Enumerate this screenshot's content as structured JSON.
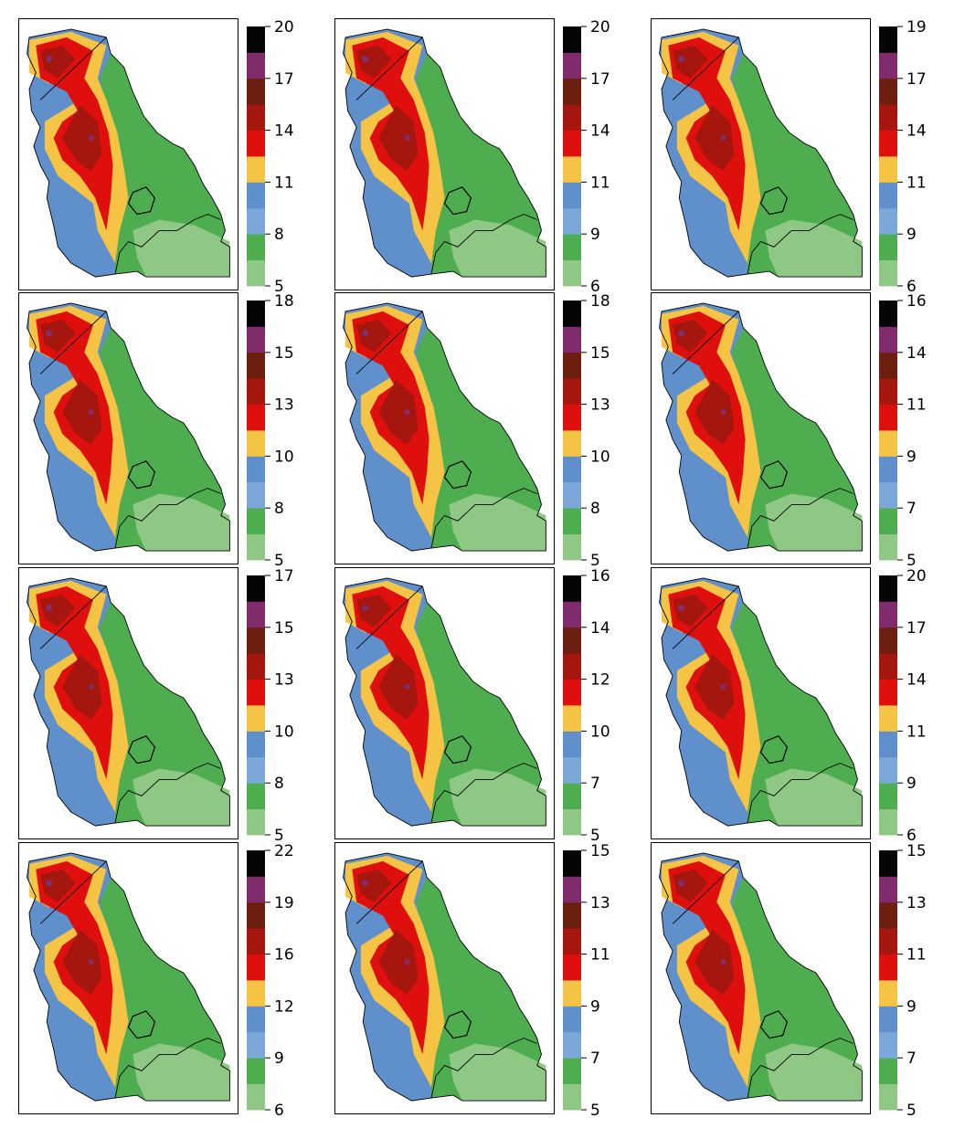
{
  "chart_data": {
    "type": "heatmap",
    "layout": {
      "rows": 4,
      "cols": 3
    },
    "colors": [
      "#8fc884",
      "#4dad4f",
      "#7ba8d8",
      "#5f90cb",
      "#f6c445",
      "#df0f0e",
      "#a4160e",
      "#6c1e0f",
      "#802c6c",
      "#050505"
    ],
    "map_colors": {
      "background": "#ffffff",
      "frame": "#000000",
      "boundary": "#000000",
      "orange": "#f39b2a",
      "purple": "#7e2f6e"
    },
    "panels": [
      {
        "range": [
          5,
          20
        ],
        "colorbar_ticks": [
          "20",
          "17",
          "14",
          "11",
          "8",
          "5"
        ]
      },
      {
        "range": [
          6,
          20
        ],
        "colorbar_ticks": [
          "20",
          "17",
          "14",
          "11",
          "9",
          "6"
        ]
      },
      {
        "range": [
          6,
          19
        ],
        "colorbar_ticks": [
          "19",
          "17",
          "14",
          "11",
          "9",
          "6"
        ]
      },
      {
        "range": [
          5,
          18
        ],
        "colorbar_ticks": [
          "18",
          "15",
          "13",
          "10",
          "8",
          "5"
        ]
      },
      {
        "range": [
          5,
          18
        ],
        "colorbar_ticks": [
          "18",
          "15",
          "13",
          "10",
          "8",
          "5"
        ]
      },
      {
        "range": [
          5,
          16
        ],
        "colorbar_ticks": [
          "16",
          "14",
          "11",
          "9",
          "7",
          "5"
        ]
      },
      {
        "range": [
          5,
          17
        ],
        "colorbar_ticks": [
          "17",
          "15",
          "13",
          "10",
          "8",
          "5"
        ]
      },
      {
        "range": [
          5,
          16
        ],
        "colorbar_ticks": [
          "16",
          "14",
          "12",
          "10",
          "7",
          "5"
        ]
      },
      {
        "range": [
          6,
          20
        ],
        "colorbar_ticks": [
          "20",
          "17",
          "14",
          "11",
          "9",
          "6"
        ]
      },
      {
        "range": [
          6,
          22
        ],
        "colorbar_ticks": [
          "22",
          "19",
          "16",
          "12",
          "9",
          "6"
        ]
      },
      {
        "range": [
          5,
          15
        ],
        "colorbar_ticks": [
          "15",
          "13",
          "11",
          "9",
          "7",
          "5"
        ]
      },
      {
        "range": [
          5,
          15
        ],
        "colorbar_ticks": [
          "15",
          "13",
          "11",
          "9",
          "7",
          "5"
        ]
      }
    ]
  }
}
